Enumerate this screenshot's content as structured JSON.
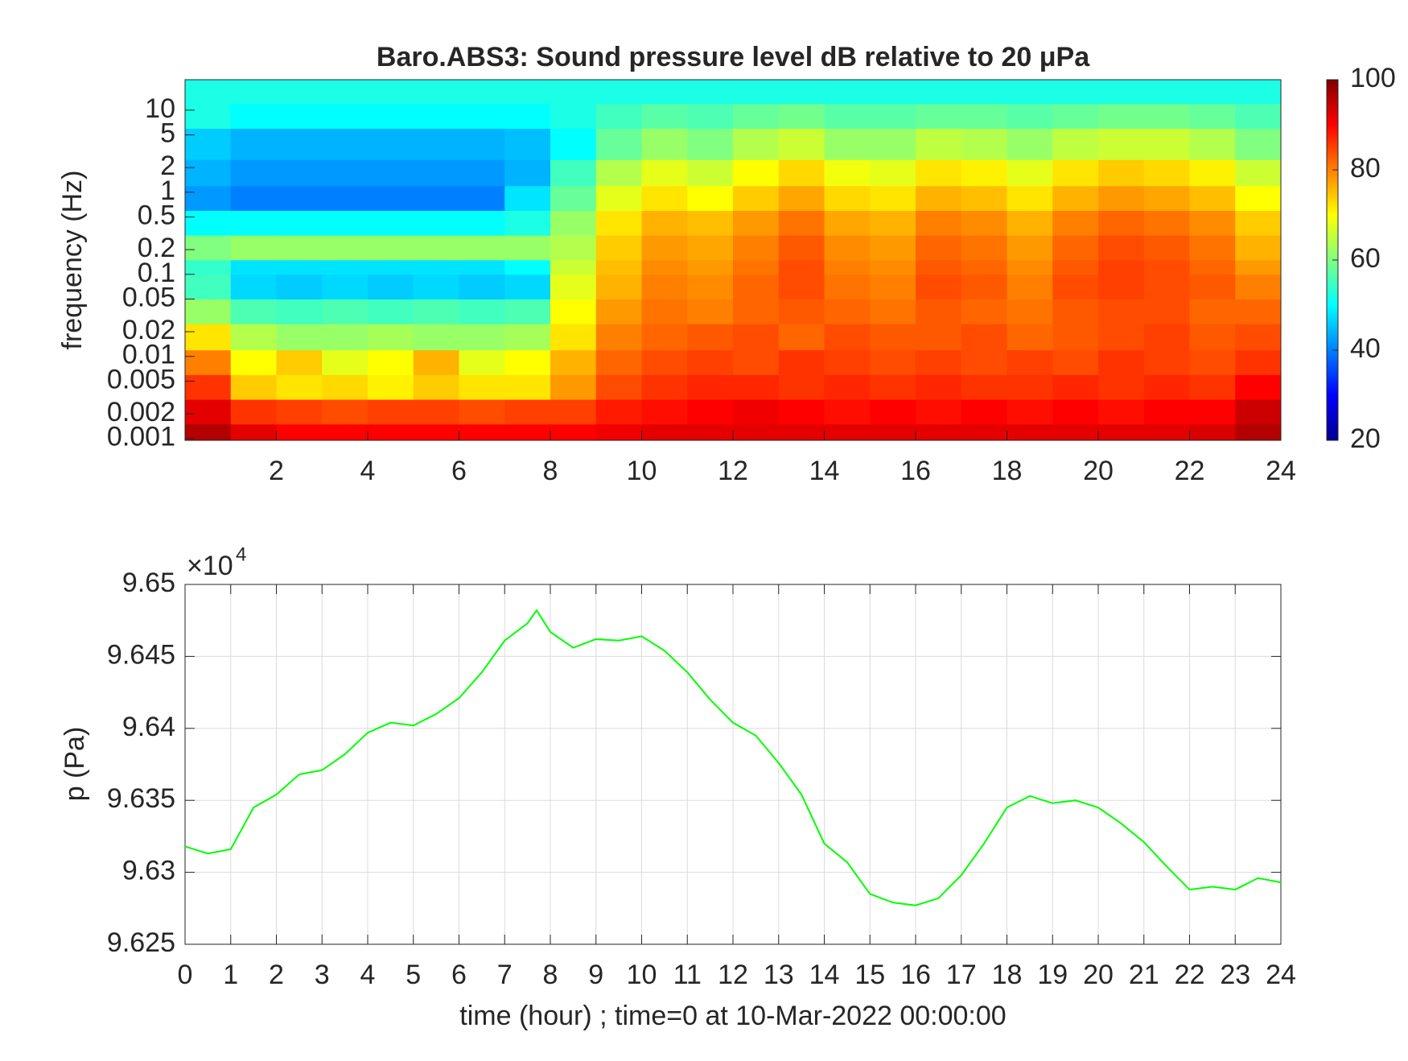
{
  "chart_data": [
    {
      "type": "heatmap",
      "title": "Baro.ABS3: Sound pressure level dB relative to 20 μPa",
      "ylabel": "frequency (Hz)",
      "colormap": "jet",
      "clim": [
        20,
        100
      ],
      "colorbar_ticks": [
        20,
        40,
        60,
        80,
        100
      ],
      "xlim": [
        0,
        24
      ],
      "xticks": [
        2,
        4,
        6,
        8,
        10,
        12,
        14,
        16,
        18,
        20,
        22,
        24
      ],
      "ylim": [
        0.00095,
        23.5
      ],
      "ylog": true,
      "yticks": [
        0.001,
        0.002,
        0.005,
        0.01,
        0.02,
        0.05,
        0.1,
        0.2,
        0.5,
        1,
        2,
        5,
        10
      ],
      "x_edges": [
        0,
        1,
        2,
        3,
        4,
        5,
        6,
        7,
        8,
        9,
        10,
        11,
        12,
        13,
        14,
        15,
        16,
        17,
        18,
        19,
        20,
        21,
        22,
        23,
        24
      ],
      "y_edges": [
        0.00095,
        0.0015,
        0.003,
        0.006,
        0.012,
        0.025,
        0.05,
        0.1,
        0.15,
        0.3,
        0.6,
        1.2,
        2.5,
        6,
        12,
        23.5
      ],
      "z": [
        [
          96,
          92,
          90,
          90,
          90,
          90,
          90,
          90,
          90,
          91,
          92,
          92,
          92,
          92,
          92,
          92,
          92,
          92,
          92,
          92,
          92,
          92,
          93,
          96
        ],
        [
          92,
          86,
          85,
          84,
          85,
          85,
          84,
          85,
          85,
          88,
          89,
          90,
          91,
          90,
          89,
          90,
          89,
          90,
          89,
          90,
          89,
          90,
          90,
          94
        ],
        [
          86,
          74,
          72,
          73,
          71,
          74,
          72,
          72,
          78,
          84,
          86,
          87,
          87,
          86,
          87,
          86,
          87,
          86,
          86,
          87,
          86,
          87,
          86,
          90
        ],
        [
          80,
          70,
          74,
          68,
          70,
          76,
          68,
          70,
          76,
          82,
          84,
          85,
          84,
          86,
          85,
          84,
          85,
          84,
          85,
          84,
          86,
          85,
          84,
          86
        ],
        [
          72,
          64,
          62,
          62,
          63,
          62,
          62,
          63,
          72,
          80,
          82,
          83,
          84,
          82,
          84,
          83,
          83,
          84,
          82,
          83,
          84,
          85,
          83,
          84
        ],
        [
          62,
          56,
          55,
          56,
          55,
          56,
          55,
          56,
          70,
          78,
          81,
          80,
          82,
          83,
          82,
          81,
          83,
          82,
          81,
          83,
          84,
          84,
          82,
          82
        ],
        [
          55,
          47,
          46,
          47,
          46,
          47,
          46,
          47,
          68,
          76,
          80,
          79,
          82,
          84,
          81,
          80,
          84,
          83,
          80,
          84,
          85,
          84,
          83,
          80
        ],
        [
          54,
          48,
          48,
          48,
          48,
          48,
          48,
          50,
          66,
          75,
          79,
          78,
          81,
          84,
          80,
          79,
          83,
          82,
          79,
          83,
          85,
          84,
          82,
          78
        ],
        [
          60,
          62,
          62,
          62,
          62,
          62,
          62,
          62,
          64,
          74,
          78,
          77,
          80,
          83,
          79,
          78,
          82,
          81,
          78,
          82,
          84,
          83,
          81,
          76
        ],
        [
          50,
          50,
          50,
          50,
          50,
          50,
          50,
          52,
          62,
          72,
          76,
          75,
          78,
          81,
          77,
          76,
          80,
          79,
          76,
          80,
          82,
          81,
          79,
          74
        ],
        [
          42,
          40,
          40,
          40,
          40,
          40,
          40,
          48,
          58,
          68,
          72,
          70,
          74,
          77,
          73,
          72,
          76,
          75,
          72,
          76,
          78,
          77,
          75,
          70
        ],
        [
          44,
          42,
          42,
          42,
          42,
          42,
          42,
          44,
          55,
          64,
          68,
          66,
          70,
          73,
          69,
          68,
          72,
          71,
          68,
          72,
          74,
          73,
          71,
          66
        ],
        [
          46,
          44,
          44,
          44,
          44,
          44,
          44,
          45,
          50,
          58,
          62,
          60,
          64,
          66,
          62,
          62,
          65,
          64,
          62,
          65,
          66,
          66,
          64,
          60
        ],
        [
          52,
          50,
          50,
          50,
          50,
          50,
          50,
          50,
          52,
          55,
          57,
          56,
          58,
          59,
          57,
          57,
          58,
          58,
          57,
          58,
          59,
          59,
          58,
          56
        ],
        [
          52,
          52,
          52,
          52,
          52,
          52,
          52,
          52,
          52,
          52,
          52,
          52,
          52,
          52,
          52,
          52,
          52,
          52,
          52,
          52,
          52,
          52,
          52,
          52
        ]
      ]
    },
    {
      "type": "line",
      "xlabel": "time (hour) ; time=0 at 10-Mar-2022 00:00:00",
      "ylabel": "p (Pa)",
      "y_multiplier": {
        "base": "×10",
        "exponent": "4"
      },
      "xlim": [
        0,
        24
      ],
      "xticks": [
        0,
        1,
        2,
        3,
        4,
        5,
        6,
        7,
        8,
        9,
        10,
        11,
        12,
        13,
        14,
        15,
        16,
        17,
        18,
        19,
        20,
        21,
        22,
        23,
        24
      ],
      "ylim": [
        9.625,
        9.65
      ],
      "yticks": [
        9.625,
        9.63,
        9.635,
        9.64,
        9.645,
        9.65
      ],
      "grid": true,
      "series": [
        {
          "color": "#00ff00",
          "x": [
            0,
            0.5,
            1,
            1.5,
            2,
            2.5,
            3,
            3.5,
            4,
            4.5,
            5,
            5.5,
            6,
            6.5,
            7,
            7.5,
            7.7,
            8,
            8.5,
            9,
            9.5,
            10,
            10.5,
            11,
            11.5,
            12,
            12.5,
            13,
            13.5,
            14,
            14.5,
            15,
            15.5,
            16,
            16.5,
            17,
            17.5,
            18,
            18.5,
            19,
            19.5,
            20,
            20.5,
            21,
            21.5,
            22,
            22.5,
            23,
            23.5,
            24
          ],
          "values": [
            9.6318,
            9.6313,
            9.6316,
            9.6345,
            9.6354,
            9.6368,
            9.6371,
            9.6382,
            9.6397,
            9.6404,
            9.6402,
            9.641,
            9.6421,
            9.6439,
            9.6461,
            9.6473,
            9.6482,
            9.6467,
            9.6456,
            9.6462,
            9.6461,
            9.6464,
            9.6454,
            9.6439,
            9.642,
            9.6404,
            9.6395,
            9.6376,
            9.6354,
            9.632,
            9.6307,
            9.6285,
            9.6279,
            9.6277,
            9.6282,
            9.6298,
            9.632,
            9.6345,
            9.6353,
            9.6348,
            9.635,
            9.6345,
            9.6334,
            9.6321,
            9.6304,
            9.6288,
            9.629,
            9.6288,
            9.6296,
            9.6293
          ]
        }
      ]
    }
  ]
}
